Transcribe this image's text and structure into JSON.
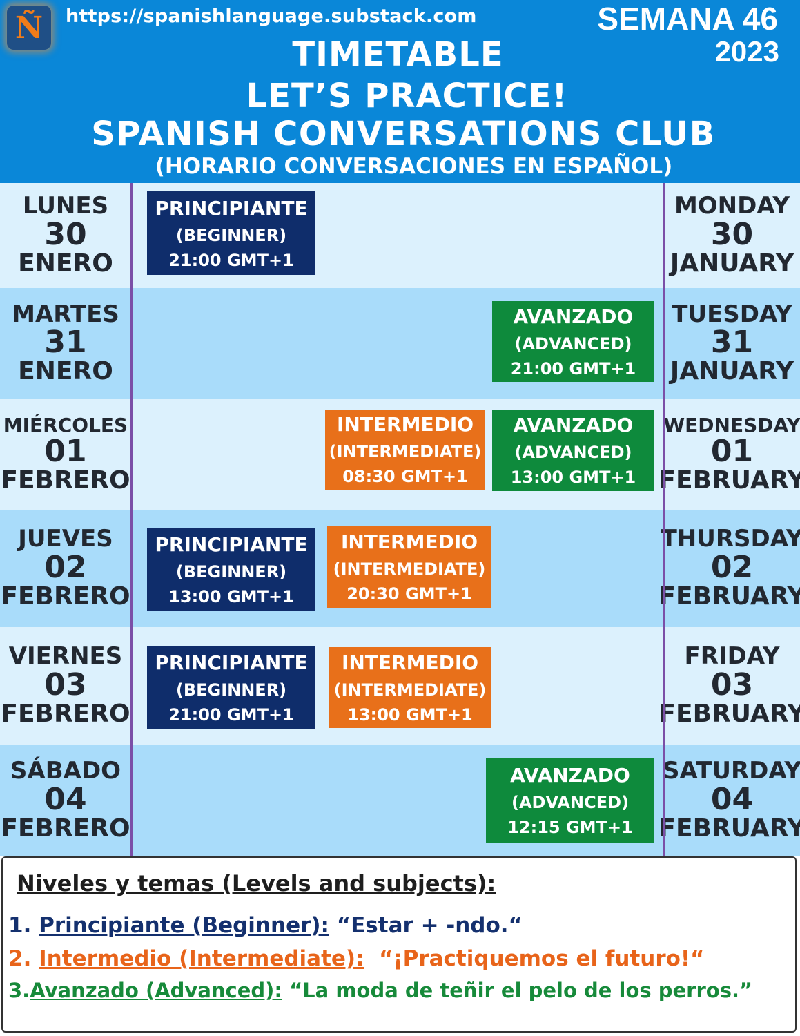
{
  "header": {
    "logo_letter": "Ñ",
    "url": "https://spanishlanguage.substack.com",
    "week_label": "SEMANA 46",
    "year": "2023",
    "title_lines": [
      "TIMETABLE",
      "LET’S PRACTICE!",
      "SPANISH CONVERSATIONS CLUB",
      "(HORARIO CONVERSACIONES EN ESPAÑOL)"
    ]
  },
  "colors": {
    "header_bg": "#0a87d8",
    "beginner": "#0f2d6b",
    "intermediate": "#e8701a",
    "advanced": "#0e8a3c",
    "row_light": "#dcf1fd",
    "row_dark": "#a9dcfa",
    "divider": "#7b4fa7"
  },
  "days": [
    {
      "es": {
        "name": "LUNES",
        "num": "30",
        "month": "ENERO"
      },
      "en": {
        "name": "MONDAY",
        "num": "30",
        "month": "JANUARY"
      },
      "sessions": [
        {
          "level": "PRINCIPIANTE",
          "english": "(BEGINNER)",
          "time": "21:00 GMT+1"
        }
      ]
    },
    {
      "es": {
        "name": "MARTES",
        "num": "31",
        "month": "ENERO"
      },
      "en": {
        "name": "TUESDAY",
        "num": "31",
        "month": "JANUARY"
      },
      "sessions": [
        {
          "level": "AVANZADO",
          "english": "(ADVANCED)",
          "time": "21:00 GMT+1"
        }
      ]
    },
    {
      "es": {
        "name": "MIÉRCOLES",
        "num": "01",
        "month": "FEBRERO"
      },
      "en": {
        "name": "WEDNESDAY",
        "num": "01",
        "month": "FEBRUARY"
      },
      "sessions": [
        {
          "level": "INTERMEDIO",
          "english": "(INTERMEDIATE)",
          "time": "08:30 GMT+1"
        },
        {
          "level": "AVANZADO",
          "english": "(ADVANCED)",
          "time": "13:00 GMT+1"
        }
      ]
    },
    {
      "es": {
        "name": "JUEVES",
        "num": "02",
        "month": "FEBRERO"
      },
      "en": {
        "name": "THURSDAY",
        "num": "02",
        "month": "FEBRUARY"
      },
      "sessions": [
        {
          "level": "PRINCIPIANTE",
          "english": "(BEGINNER)",
          "time": "13:00 GMT+1"
        },
        {
          "level": "INTERMEDIO",
          "english": "(INTERMEDIATE)",
          "time": "20:30 GMT+1"
        }
      ]
    },
    {
      "es": {
        "name": "VIERNES",
        "num": "03",
        "month": "FEBRERO"
      },
      "en": {
        "name": "FRIDAY",
        "num": "03",
        "month": "FEBRUARY"
      },
      "sessions": [
        {
          "level": "PRINCIPIANTE",
          "english": "(BEGINNER)",
          "time": "21:00 GMT+1"
        },
        {
          "level": "INTERMEDIO",
          "english": "(INTERMEDIATE)",
          "time": "13:00 GMT+1"
        }
      ]
    },
    {
      "es": {
        "name": "SÁBADO",
        "num": "04",
        "month": "FEBRERO"
      },
      "en": {
        "name": "SATURDAY",
        "num": "04",
        "month": "FEBRUARY"
      },
      "sessions": [
        {
          "level": "AVANZADO",
          "english": "(ADVANCED)",
          "time": "12:15 GMT+1"
        }
      ]
    }
  ],
  "legend": {
    "title": "Niveles y temas (Levels and subjects):",
    "items": [
      {
        "num": "1. ",
        "level": "Principiante (Beginner):",
        "topic": " “Estar + -ndo.“"
      },
      {
        "num": "2. ",
        "level": "Intermedio (Intermediate):",
        "topic": "  “¡Practiquemos el futuro!“"
      },
      {
        "num": "3.",
        "level": "Avanzado (Advanced):",
        "topic": " “La moda de teñir el pelo de los perros.”"
      }
    ]
  }
}
